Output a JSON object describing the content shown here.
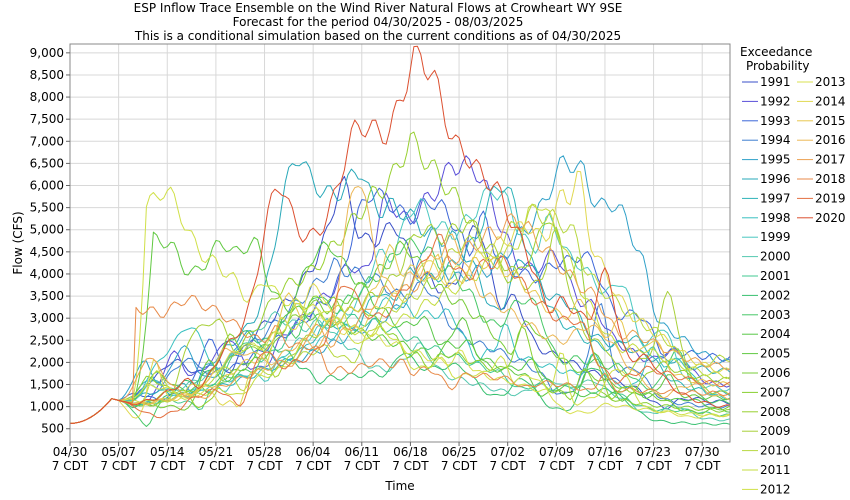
{
  "chart_data": {
    "type": "line",
    "title": "ESP Inflow Trace Ensemble on the Wind River Natural Flows at Crowheart WY 9SE",
    "subtitle1": "Forecast for the period 04/30/2025 - 08/03/2025",
    "subtitle2": "This is a conditional simulation based on the current conditions as of 04/30/2025",
    "xlabel": "Time",
    "ylabel": "Flow (CFS)",
    "ylim": [
      200,
      9200
    ],
    "xlim_days": [
      0,
      95
    ],
    "grid": true,
    "legend_title_1": "Exceedance",
    "legend_title_2": "Probability",
    "legend_position": "right",
    "y_ticks": [
      500,
      1000,
      1500,
      2000,
      2500,
      3000,
      3500,
      4000,
      4500,
      5000,
      5500,
      6000,
      6500,
      7000,
      7500,
      8000,
      8500,
      9000
    ],
    "y_tick_labels": [
      "500",
      "1,000",
      "1,500",
      "2,000",
      "2,500",
      "3,000",
      "3,500",
      "4,000",
      "4,500",
      "5,000",
      "5,500",
      "6,000",
      "6,500",
      "7,000",
      "7,500",
      "8,000",
      "8,500",
      "9,000"
    ],
    "x_ticks": [
      {
        "day": 0,
        "date": "04/30",
        "tz": "7 CDT"
      },
      {
        "day": 7,
        "date": "05/07",
        "tz": "7 CDT"
      },
      {
        "day": 14,
        "date": "05/14",
        "tz": "7 CDT"
      },
      {
        "day": 21,
        "date": "05/21",
        "tz": "7 CDT"
      },
      {
        "day": 28,
        "date": "05/28",
        "tz": "7 CDT"
      },
      {
        "day": 35,
        "date": "06/04",
        "tz": "7 CDT"
      },
      {
        "day": 42,
        "date": "06/11",
        "tz": "7 CDT"
      },
      {
        "day": 49,
        "date": "06/18",
        "tz": "7 CDT"
      },
      {
        "day": 56,
        "date": "06/25",
        "tz": "7 CDT"
      },
      {
        "day": 63,
        "date": "07/02",
        "tz": "7 CDT"
      },
      {
        "day": 70,
        "date": "07/09",
        "tz": "7 CDT"
      },
      {
        "day": 77,
        "date": "07/16",
        "tz": "7 CDT"
      },
      {
        "day": 84,
        "date": "07/23",
        "tz": "7 CDT"
      },
      {
        "day": 91,
        "date": "07/30",
        "tz": "7 CDT"
      }
    ],
    "series": [
      {
        "name": "1991",
        "color": "#3a4fc8",
        "peak_day": 41,
        "peak": 5200,
        "end": 1100
      },
      {
        "name": "1992",
        "color": "#5a4fd8",
        "peak_day": 55,
        "peak": 6300,
        "end": 1500
      },
      {
        "name": "1993",
        "color": "#3c66d8",
        "peak_day": 52,
        "peak": 5700,
        "end": 2100
      },
      {
        "name": "1994",
        "color": "#3e7ed0",
        "peak_day": 38,
        "peak": 4200,
        "end": 1000
      },
      {
        "name": "1995",
        "color": "#2fa0c8",
        "peak_day": 74,
        "peak": 6050,
        "end": 2000
      },
      {
        "name": "1996",
        "color": "#27a8b8",
        "peak_day": 42,
        "peak": 6300,
        "end": 1800
      },
      {
        "name": "1997",
        "color": "#2cb3b8",
        "peak_day": 59,
        "peak": 4600,
        "end": 1300
      },
      {
        "name": "1998",
        "color": "#38c0c0",
        "peak_day": 46,
        "peak": 3400,
        "end": 1200
      },
      {
        "name": "1999",
        "color": "#4ac8c0",
        "peak_day": 61,
        "peak": 5900,
        "end": 1400
      },
      {
        "name": "2000",
        "color": "#55c8b0",
        "peak_day": 30,
        "peak": 3000,
        "end": 700
      },
      {
        "name": "2001",
        "color": "#40c890",
        "peak_day": 40,
        "peak": 3200,
        "end": 800
      },
      {
        "name": "2002",
        "color": "#38c070",
        "peak_day": 24,
        "peak": 2700,
        "end": 600
      },
      {
        "name": "2003",
        "color": "#48c868",
        "peak_day": 50,
        "peak": 4700,
        "end": 1100
      },
      {
        "name": "2004",
        "color": "#58c848",
        "peak_day": 38,
        "peak": 3600,
        "end": 900
      },
      {
        "name": "2005",
        "color": "#60c840",
        "peak_day": 12,
        "peak": 4500,
        "end": 1200
      },
      {
        "name": "2006",
        "color": "#78cc38",
        "peak_day": 47,
        "peak": 4400,
        "end": 1000
      },
      {
        "name": "2007",
        "color": "#88d030",
        "peak_day": 36,
        "peak": 3500,
        "end": 900
      },
      {
        "name": "2008",
        "color": "#98d030",
        "peak_day": 49,
        "peak": 7050,
        "end": 1600
      },
      {
        "name": "2009",
        "color": "#a8d038",
        "peak_day": 57,
        "peak": 5200,
        "end": 1300
      },
      {
        "name": "2010",
        "color": "#b8d840",
        "peak_day": 67,
        "peak": 5400,
        "end": 2100
      },
      {
        "name": "2011",
        "color": "#c4dc40",
        "peak_day": 66,
        "peak": 4700,
        "end": 1700
      },
      {
        "name": "2012",
        "color": "#d0e048",
        "peak_day": 11,
        "peak": 5100,
        "end": 800
      },
      {
        "name": "2013",
        "color": "#d8e050",
        "peak_day": 33,
        "peak": 3300,
        "end": 800
      },
      {
        "name": "2014",
        "color": "#e0d850",
        "peak_day": 71,
        "peak": 5750,
        "end": 1800
      },
      {
        "name": "2015",
        "color": "#e8c850",
        "peak_day": 56,
        "peak": 5000,
        "end": 1500
      },
      {
        "name": "2016",
        "color": "#ecb858",
        "peak_day": 53,
        "peak": 4400,
        "end": 1200
      },
      {
        "name": "2017",
        "color": "#eca050",
        "peak_day": 64,
        "peak": 5400,
        "end": 1900
      },
      {
        "name": "2018",
        "color": "#e88a48",
        "peak_day": 9,
        "peak": 3250,
        "end": 1300
      },
      {
        "name": "2019",
        "color": "#e47040",
        "peak_day": 60,
        "peak": 4300,
        "end": 1500
      },
      {
        "name": "2020",
        "color": "#dc5030",
        "peak_day": 50,
        "peak": 8700,
        "end": 1000
      }
    ]
  }
}
